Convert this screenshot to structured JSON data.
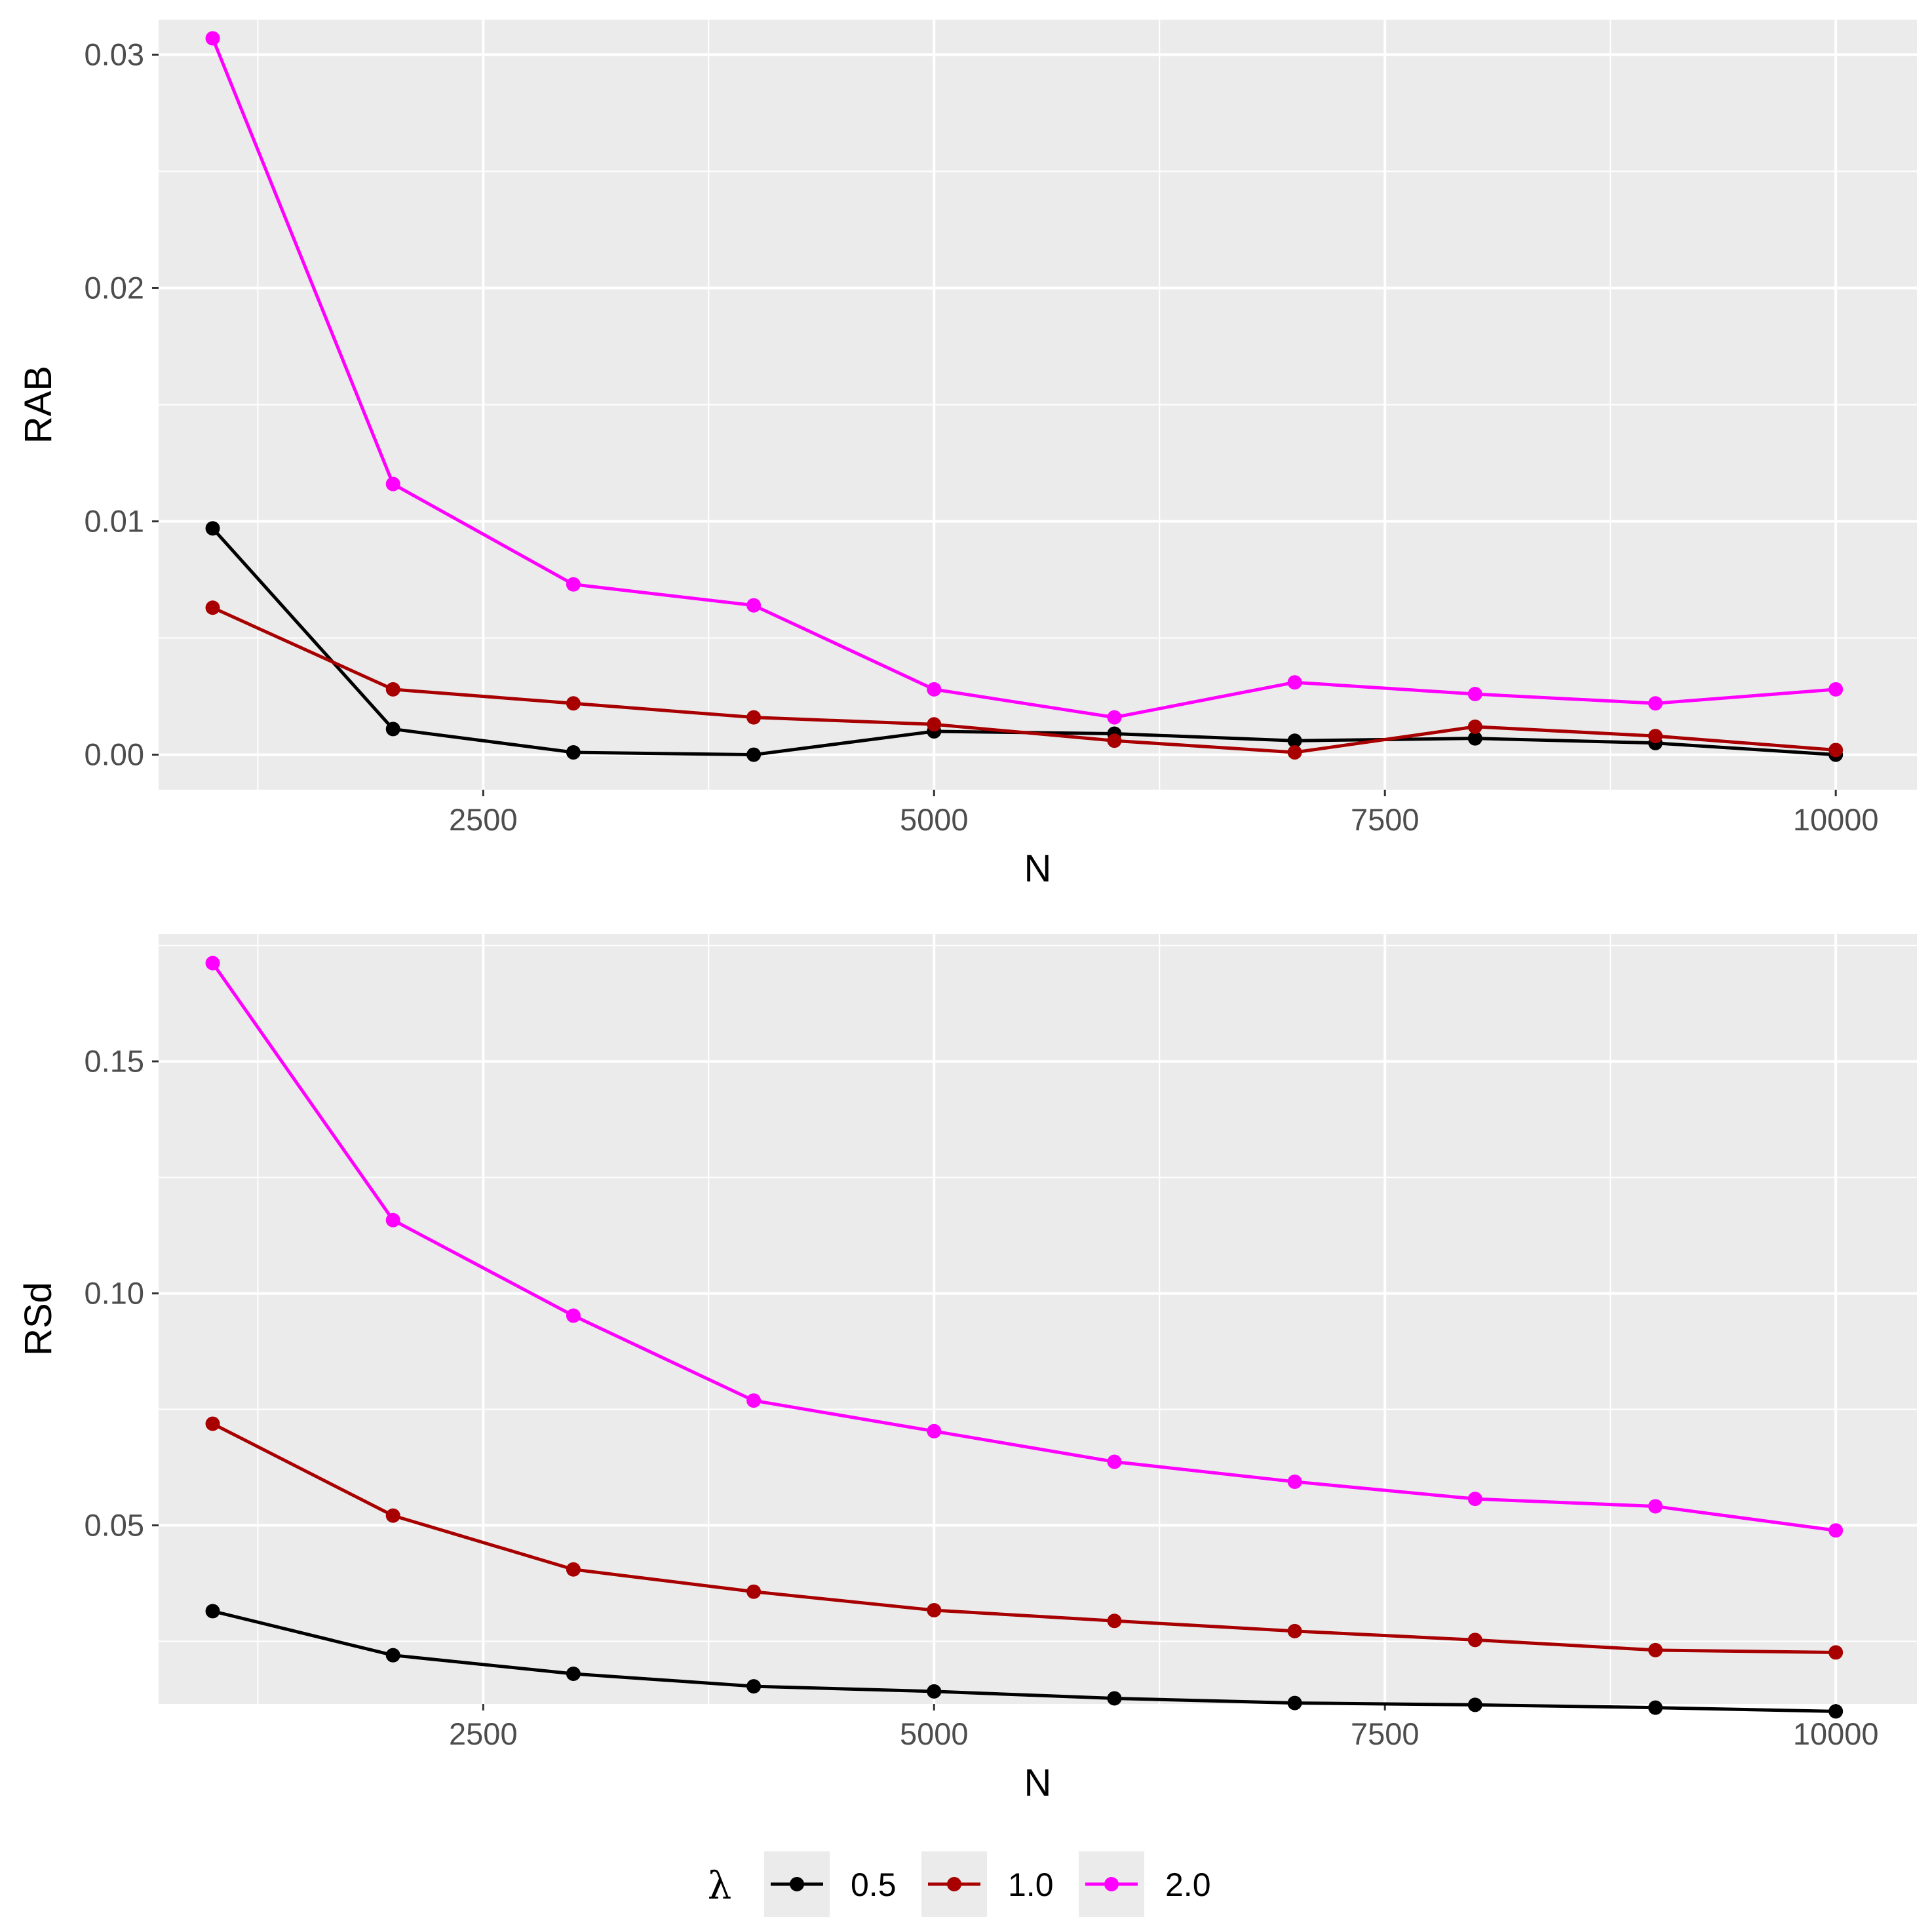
{
  "chart_data": [
    {
      "type": "line",
      "xlabel": "N",
      "ylabel": "RAB",
      "xlim": [
        700,
        10450
      ],
      "ylim": [
        -0.0015,
        0.0315
      ],
      "xticks": [
        2500,
        5000,
        7500,
        10000
      ],
      "xtick_labels": [
        "2500",
        "5000",
        "7500",
        "10000"
      ],
      "yticks": [
        0.0,
        0.01,
        0.02,
        0.03
      ],
      "ytick_labels": [
        "0.00",
        "0.01",
        "0.02",
        "0.03"
      ],
      "grid": true,
      "x": [
        1000,
        2000,
        3000,
        4000,
        5000,
        6000,
        7000,
        8000,
        9000,
        10000
      ],
      "series": [
        {
          "name": "0.5",
          "color": "#000000",
          "values": [
            0.0097,
            0.0011,
            0.0001,
            0.0,
            0.001,
            0.0009,
            0.0006,
            0.0007,
            0.0005,
            0.0
          ]
        },
        {
          "name": "1.0",
          "color": "#a80000",
          "values": [
            0.0063,
            0.0028,
            0.0022,
            0.0016,
            0.0013,
            0.0006,
            0.0001,
            0.0012,
            0.0008,
            0.0002
          ]
        },
        {
          "name": "2.0",
          "color": "#ff00ff",
          "values": [
            0.0307,
            0.0116,
            0.0073,
            0.0064,
            0.0028,
            0.0016,
            0.0031,
            0.0026,
            0.0022,
            0.0028
          ]
        }
      ]
    },
    {
      "type": "line",
      "xlabel": "N",
      "ylabel": "RSd",
      "xlim": [
        700,
        10450
      ],
      "ylim": [
        0.0115,
        0.1775
      ],
      "xticks": [
        2500,
        5000,
        7500,
        10000
      ],
      "xtick_labels": [
        "2500",
        "5000",
        "7500",
        "10000"
      ],
      "yticks": [
        0.05,
        0.1,
        0.15
      ],
      "ytick_labels": [
        "0.05",
        "0.10",
        "0.15"
      ],
      "grid": true,
      "x": [
        1000,
        2000,
        3000,
        4000,
        5000,
        6000,
        7000,
        8000,
        9000,
        10000
      ],
      "series": [
        {
          "name": "0.5",
          "color": "#000000",
          "values": [
            0.0315,
            0.022,
            0.018,
            0.0153,
            0.0142,
            0.0127,
            0.0117,
            0.0113,
            0.0107,
            0.0099
          ]
        },
        {
          "name": "1.0",
          "color": "#a80000",
          "values": [
            0.0719,
            0.0521,
            0.0405,
            0.0357,
            0.0317,
            0.0294,
            0.0272,
            0.0253,
            0.0231,
            0.0226
          ]
        },
        {
          "name": "2.0",
          "color": "#ff00ff",
          "values": [
            0.1712,
            0.1158,
            0.0952,
            0.0769,
            0.0703,
            0.0637,
            0.0594,
            0.0557,
            0.0541,
            0.0489
          ]
        }
      ]
    }
  ],
  "legend": {
    "title": "λ",
    "position": "bottom",
    "items": [
      {
        "label": "0.5",
        "color": "#000000"
      },
      {
        "label": "1.0",
        "color": "#a80000"
      },
      {
        "label": "2.0",
        "color": "#ff00ff"
      }
    ]
  },
  "colors": {
    "panel": "#ebebeb",
    "grid": "#ffffff",
    "background": "#ffffff"
  }
}
